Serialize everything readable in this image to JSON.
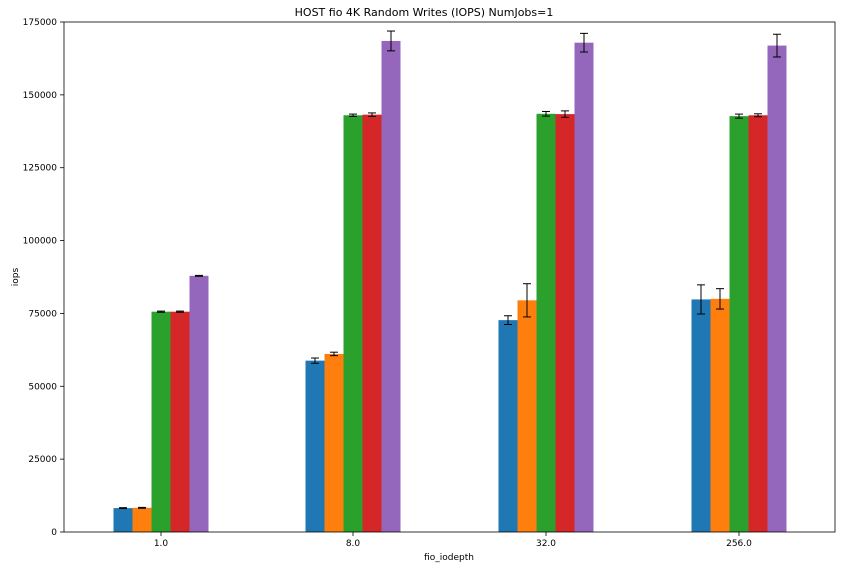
{
  "chart_data": {
    "type": "bar",
    "title": "HOST fio 4K Random Writes (IOPS) NumJobs=1",
    "xlabel": "fio_iodepth",
    "ylabel": "iops",
    "categories": [
      "1.0",
      "8.0",
      "32.0",
      "256.0"
    ],
    "ylim": [
      0,
      175000
    ],
    "yticks": [
      "0",
      "25000",
      "50000",
      "75000",
      "100000",
      "125000",
      "150000",
      "175000"
    ],
    "grid": false,
    "legend": "none",
    "series": [
      {
        "color": "#1f77b4",
        "values": [
          8200,
          58800,
          72700,
          79800
        ],
        "errors": [
          150,
          900,
          1500,
          5000
        ]
      },
      {
        "color": "#ff7f0e",
        "values": [
          8300,
          61100,
          79500,
          80000
        ],
        "errors": [
          150,
          600,
          5700,
          3500
        ]
      },
      {
        "color": "#2ca02c",
        "values": [
          75600,
          143000,
          143500,
          142700
        ],
        "errors": [
          200,
          400,
          800,
          700
        ]
      },
      {
        "color": "#d62728",
        "values": [
          75600,
          143200,
          143400,
          143000
        ],
        "errors": [
          200,
          600,
          1100,
          500
        ]
      },
      {
        "color": "#9467bd",
        "values": [
          87900,
          168500,
          167900,
          166900
        ],
        "errors": [
          150,
          3400,
          3200,
          3900
        ]
      }
    ]
  }
}
